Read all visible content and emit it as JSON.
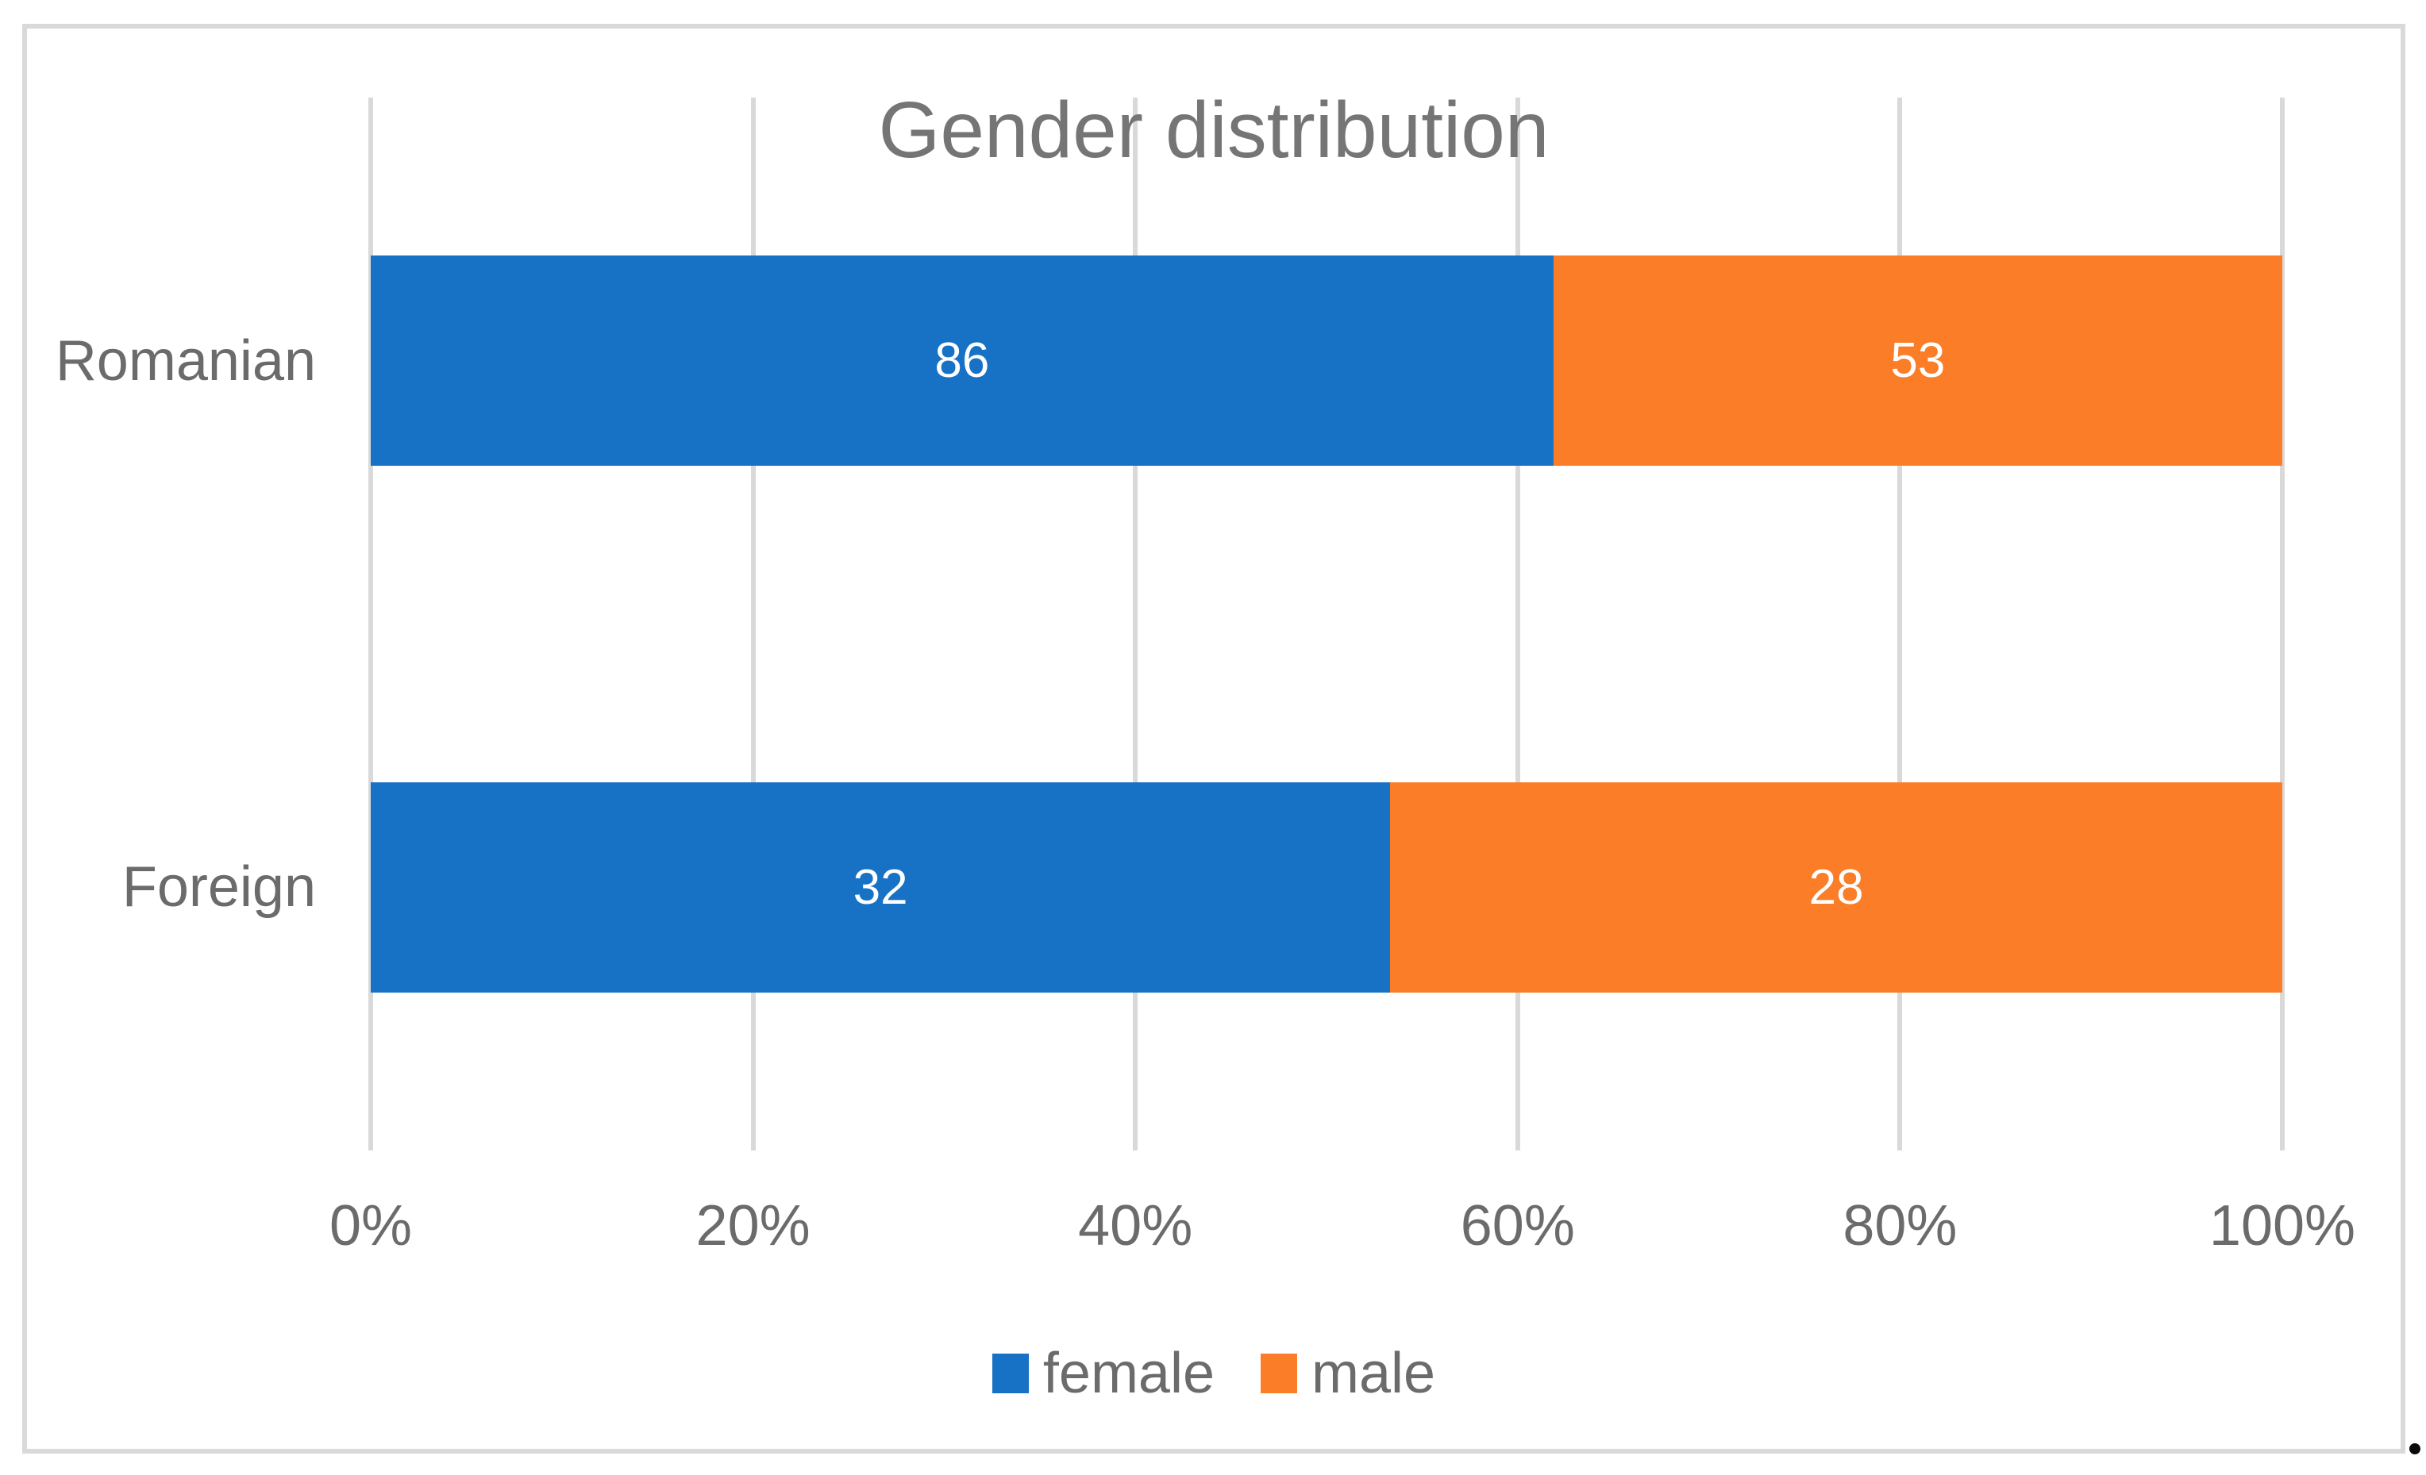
{
  "chart_data": {
    "type": "bar",
    "orientation": "horizontal",
    "stacked": true,
    "stacked_mode": "100-percent",
    "title": "Gender distribution",
    "categories": [
      "Romanian",
      "Foreign"
    ],
    "series": [
      {
        "name": "female",
        "color": "#1772C6",
        "values": [
          86,
          32
        ]
      },
      {
        "name": "male",
        "color": "#FB7D27",
        "values": [
          53,
          28
        ]
      }
    ],
    "data_labels": {
      "shown": true,
      "color": "#FFFFFF",
      "values_by_category": {
        "Romanian": [
          86,
          53
        ],
        "Foreign": [
          32,
          28
        ]
      }
    },
    "x_axis": {
      "range": [
        0,
        100
      ],
      "unit": "%",
      "tick_values": [
        0,
        20,
        40,
        60,
        80,
        100
      ],
      "tick_labels": [
        "0%",
        "20%",
        "40%",
        "60%",
        "80%",
        "100%"
      ],
      "gridlines": true,
      "gridline_color": "#D9D9D9"
    },
    "y_axis": {
      "tick_labels": [
        "Romanian",
        "Foreign"
      ]
    },
    "legend": {
      "position": "bottom",
      "entries": [
        "female",
        "male"
      ]
    },
    "colors": {
      "female": "#1772C6",
      "male": "#FB7D27",
      "gridline": "#D9D9D9",
      "frame_border": "#D9D9D9",
      "axis_text": "#6B6B6B",
      "title_text": "#757575",
      "data_label_text": "#FFFFFF",
      "background": "#FFFFFF"
    }
  },
  "annotations": {
    "trailing_period": "."
  }
}
